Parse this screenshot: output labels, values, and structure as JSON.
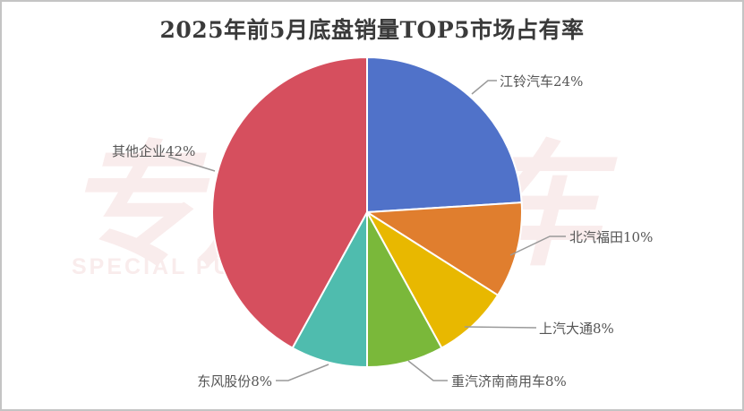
{
  "title": "2025年前5月底盘销量TOP5市场占有率",
  "watermark": {
    "text_cn": "专用汽车",
    "text_en": "SPECIAL PURPOSE VEHICLE",
    "color": "#f5dede"
  },
  "chart_data": {
    "type": "pie",
    "title": "2025年前5月底盘销量TOP5市场占有率",
    "categories": [
      "江铃汽车",
      "北汽福田",
      "上汽大通",
      "重汽济南商用车",
      "东风股份",
      "其他企业"
    ],
    "values": [
      24,
      10,
      8,
      8,
      8,
      42
    ],
    "unit": "%",
    "colors": [
      "#5072c9",
      "#e07e2e",
      "#e8b800",
      "#7ab83a",
      "#4fbcae",
      "#d64f5e"
    ],
    "labels": [
      "江铃汽车24%",
      "北汽福田10%",
      "上汽大通8%",
      "重汽济南商用车8%",
      "东风股份8%",
      "其他企业42%"
    ],
    "start_angle": "12 o'clock, clockwise",
    "legend": "none (leader-line data labels)"
  }
}
